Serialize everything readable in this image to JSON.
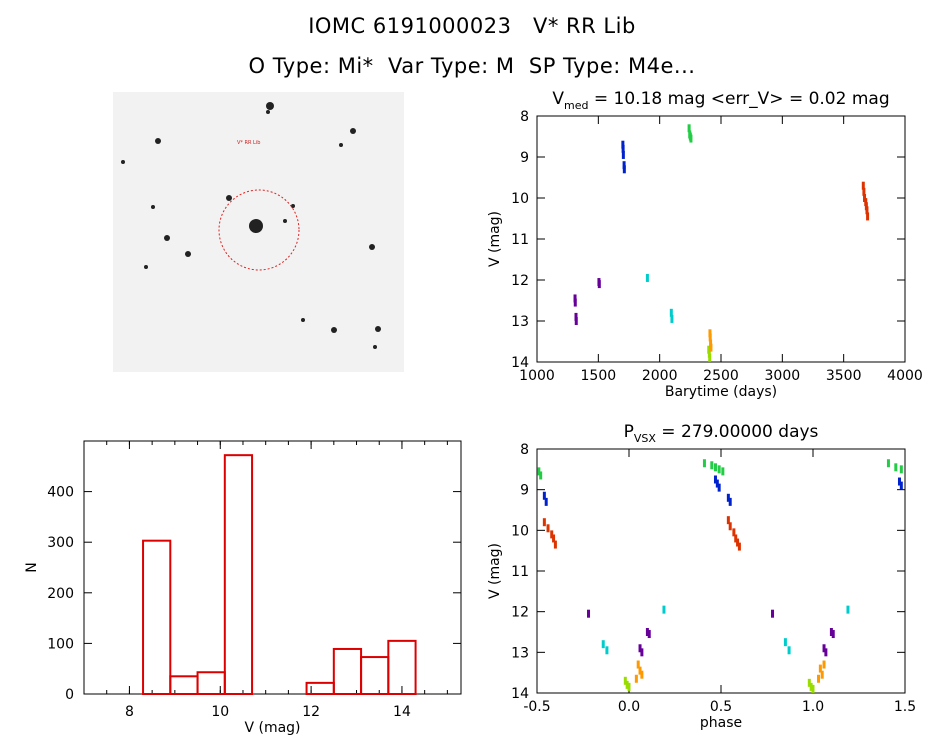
{
  "header": {
    "line1": "IOMC 6191000023   V* RR Lib",
    "line2": "O Type: Mi*  Var Type: M  SP Type: M4e..."
  },
  "image_panel": {
    "target_label": "V* RR Lib"
  },
  "chart_data": [
    {
      "type": "scatter",
      "title": "V_med = 10.18 mag <err_V> = 0.02 mag",
      "title_parts": {
        "v": "V",
        "sub": "med",
        "rest": " = 10.18 mag <err_V> = 0.02 mag"
      },
      "xlabel": "Barytime (days)",
      "ylabel": "V (mag)",
      "xlim": [
        1000,
        4000
      ],
      "ylim": [
        14,
        8
      ],
      "y_inverted": true,
      "xticks": [
        1000,
        1500,
        2000,
        2500,
        3000,
        3500,
        4000
      ],
      "yticks": [
        8,
        9,
        10,
        11,
        12,
        13,
        14
      ],
      "series": [
        {
          "color": "#660099",
          "points": [
            [
              1310,
              12.45
            ],
            [
              1312,
              12.55
            ],
            [
              1318,
              12.9
            ],
            [
              1320,
              13.0
            ],
            [
              1505,
              12.05
            ],
            [
              1508,
              12.1
            ]
          ]
        },
        {
          "color": "#0022cc",
          "points": [
            [
              1700,
              8.7
            ],
            [
              1702,
              8.8
            ],
            [
              1704,
              8.95
            ],
            [
              1710,
              9.2
            ],
            [
              1712,
              9.3
            ]
          ]
        },
        {
          "color": "#00cccc",
          "points": [
            [
              1900,
              11.95
            ],
            [
              2095,
              12.8
            ],
            [
              2100,
              12.95
            ]
          ]
        },
        {
          "color": "#22cc44",
          "points": [
            [
              2240,
              8.3
            ],
            [
              2245,
              8.45
            ],
            [
              2250,
              8.5
            ],
            [
              2255,
              8.55
            ]
          ]
        },
        {
          "color": "#99dd00",
          "points": [
            [
              2400,
              13.7
            ],
            [
              2405,
              13.8
            ],
            [
              2408,
              13.9
            ]
          ]
        },
        {
          "color": "#ff9900",
          "points": [
            [
              2410,
              13.3
            ],
            [
              2412,
              13.4
            ],
            [
              2415,
              13.55
            ],
            [
              2418,
              13.65
            ]
          ]
        },
        {
          "color": "#dd3300",
          "points": [
            [
              3660,
              9.7
            ],
            [
              3665,
              9.85
            ],
            [
              3670,
              10.0
            ],
            [
              3680,
              10.1
            ],
            [
              3685,
              10.2
            ],
            [
              3690,
              10.3
            ],
            [
              3695,
              10.45
            ]
          ]
        }
      ]
    },
    {
      "type": "bar",
      "title": "",
      "xlabel": "V (mag)",
      "ylabel": "N",
      "xlim": [
        7.0,
        15.3
      ],
      "ylim": [
        0,
        500
      ],
      "xticks": [
        8,
        10,
        12,
        14
      ],
      "yticks": [
        0,
        100,
        200,
        300,
        400
      ],
      "bins": [
        {
          "lo": 8.3,
          "hi": 8.9,
          "n": 303
        },
        {
          "lo": 8.9,
          "hi": 9.5,
          "n": 35
        },
        {
          "lo": 9.5,
          "hi": 10.1,
          "n": 43
        },
        {
          "lo": 10.1,
          "hi": 10.7,
          "n": 472
        },
        {
          "lo": 11.9,
          "hi": 12.5,
          "n": 22
        },
        {
          "lo": 12.5,
          "hi": 13.1,
          "n": 89
        },
        {
          "lo": 13.1,
          "hi": 13.7,
          "n": 73
        },
        {
          "lo": 13.7,
          "hi": 14.3,
          "n": 105
        }
      ],
      "color": "#dd0000"
    },
    {
      "type": "scatter",
      "title": "P_VSX = 279.00000 days",
      "title_parts": {
        "v": "P",
        "sub": "VSX",
        "rest": " = 279.00000 days"
      },
      "xlabel": "phase",
      "ylabel": "V (mag)",
      "xlim": [
        -0.5,
        1.5
      ],
      "ylim": [
        14,
        8
      ],
      "y_inverted": true,
      "xticks": [
        -0.5,
        0.0,
        0.5,
        1.0,
        1.5
      ],
      "xtick_labels": [
        "-0.5",
        "0.0",
        "0.5",
        "1.0",
        "1.5"
      ],
      "yticks": [
        8,
        9,
        10,
        11,
        12,
        13,
        14
      ],
      "series": [
        {
          "color": "#22cc44",
          "points": [
            [
              -0.49,
              8.55
            ],
            [
              -0.48,
              8.65
            ],
            [
              0.41,
              8.35
            ],
            [
              0.45,
              8.4
            ],
            [
              0.47,
              8.45
            ],
            [
              0.49,
              8.5
            ],
            [
              0.51,
              8.55
            ],
            [
              1.41,
              8.35
            ],
            [
              1.45,
              8.45
            ],
            [
              1.48,
              8.5
            ]
          ]
        },
        {
          "color": "#0022cc",
          "points": [
            [
              -0.46,
              9.15
            ],
            [
              -0.45,
              9.3
            ],
            [
              0.47,
              8.75
            ],
            [
              0.48,
              8.85
            ],
            [
              0.49,
              8.95
            ],
            [
              0.54,
              9.2
            ],
            [
              0.55,
              9.3
            ],
            [
              1.47,
              8.8
            ],
            [
              1.48,
              8.9
            ]
          ]
        },
        {
          "color": "#dd3300",
          "points": [
            [
              -0.46,
              9.8
            ],
            [
              -0.44,
              9.95
            ],
            [
              -0.42,
              10.1
            ],
            [
              -0.41,
              10.2
            ],
            [
              -0.4,
              10.35
            ],
            [
              0.54,
              9.75
            ],
            [
              0.55,
              9.9
            ],
            [
              0.57,
              10.05
            ],
            [
              0.58,
              10.2
            ],
            [
              0.59,
              10.3
            ],
            [
              0.6,
              10.4
            ]
          ]
        },
        {
          "color": "#660099",
          "points": [
            [
              -0.22,
              12.05
            ],
            [
              0.06,
              12.9
            ],
            [
              0.07,
              13.0
            ],
            [
              0.1,
              12.5
            ],
            [
              0.11,
              12.55
            ],
            [
              0.78,
              12.05
            ],
            [
              1.06,
              12.9
            ],
            [
              1.07,
              13.0
            ],
            [
              1.1,
              12.5
            ],
            [
              1.11,
              12.55
            ]
          ]
        },
        {
          "color": "#00cccc",
          "points": [
            [
              -0.14,
              12.8
            ],
            [
              -0.12,
              12.95
            ],
            [
              0.19,
              11.95
            ],
            [
              0.85,
              12.75
            ],
            [
              0.87,
              12.95
            ],
            [
              1.19,
              11.95
            ]
          ]
        },
        {
          "color": "#99dd00",
          "points": [
            [
              -0.02,
              13.7
            ],
            [
              -0.01,
              13.8
            ],
            [
              0.0,
              13.85
            ],
            [
              0.98,
              13.75
            ],
            [
              0.99,
              13.85
            ],
            [
              1.0,
              13.9
            ]
          ]
        },
        {
          "color": "#ff9900",
          "points": [
            [
              0.05,
              13.3
            ],
            [
              0.06,
              13.45
            ],
            [
              0.07,
              13.55
            ],
            [
              0.04,
              13.65
            ],
            [
              1.04,
              13.4
            ],
            [
              1.05,
              13.55
            ],
            [
              1.06,
              13.3
            ],
            [
              1.03,
              13.65
            ]
          ]
        }
      ]
    }
  ]
}
